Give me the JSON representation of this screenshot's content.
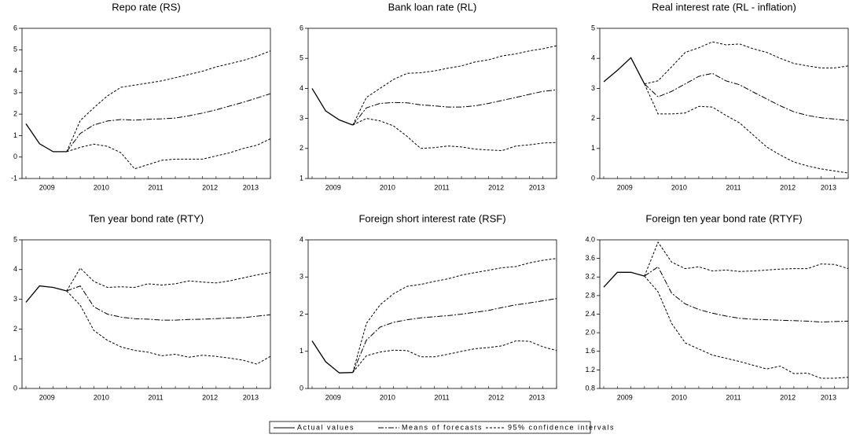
{
  "legend": [
    "Actual values",
    "Means of forecasts",
    "95% confidence intervals"
  ],
  "chart_data": [
    {
      "type": "line",
      "title": "Repo rate (RS)",
      "color": "#000000",
      "categories": [
        null,
        null,
        "2009",
        null,
        null,
        null,
        "2010",
        null,
        null,
        null,
        "2011",
        null,
        null,
        null,
        "2012",
        null,
        null,
        "2013",
        null
      ],
      "ylim": [
        -1,
        6
      ],
      "yticks": [
        -1,
        0,
        1,
        2,
        3,
        4,
        5,
        6
      ],
      "actual": [
        1.55,
        0.62,
        0.25,
        0.25,
        null,
        null,
        null,
        null,
        null,
        null,
        null,
        null,
        null,
        null,
        null,
        null,
        null,
        null,
        null
      ],
      "mean": [
        null,
        null,
        null,
        0.25,
        1.1,
        1.5,
        1.68,
        1.75,
        1.72,
        1.76,
        1.78,
        1.82,
        1.92,
        2.05,
        2.2,
        2.38,
        2.55,
        2.75,
        2.95
      ],
      "upper": [
        null,
        null,
        null,
        0.25,
        1.7,
        2.3,
        2.85,
        3.25,
        3.35,
        3.45,
        3.55,
        3.7,
        3.85,
        4.0,
        4.2,
        4.35,
        4.5,
        4.7,
        4.95
      ],
      "lower": [
        null,
        null,
        null,
        0.25,
        0.45,
        0.6,
        0.5,
        0.2,
        -0.55,
        -0.35,
        -0.15,
        -0.1,
        -0.1,
        -0.1,
        0.05,
        0.2,
        0.4,
        0.55,
        0.85
      ]
    },
    {
      "type": "line",
      "title": "Bank loan rate (RL)",
      "color": "#000000",
      "categories": [
        null,
        null,
        "2009",
        null,
        null,
        null,
        "2010",
        null,
        null,
        null,
        "2011",
        null,
        null,
        null,
        "2012",
        null,
        null,
        "2013",
        null
      ],
      "ylim": [
        1,
        6
      ],
      "yticks": [
        1,
        2,
        3,
        4,
        5,
        6
      ],
      "actual": [
        4.0,
        3.25,
        2.95,
        2.78,
        null,
        null,
        null,
        null,
        null,
        null,
        null,
        null,
        null,
        null,
        null,
        null,
        null,
        null,
        null
      ],
      "mean": [
        null,
        null,
        null,
        2.78,
        3.35,
        3.5,
        3.53,
        3.52,
        3.45,
        3.42,
        3.38,
        3.38,
        3.42,
        3.5,
        3.6,
        3.7,
        3.8,
        3.9,
        3.95
      ],
      "upper": [
        null,
        null,
        null,
        2.78,
        3.7,
        4.0,
        4.3,
        4.5,
        4.52,
        4.58,
        4.67,
        4.75,
        4.88,
        4.95,
        5.08,
        5.15,
        5.25,
        5.32,
        5.42
      ],
      "lower": [
        null,
        null,
        null,
        2.78,
        3.0,
        2.92,
        2.75,
        2.4,
        2.0,
        2.03,
        2.08,
        2.05,
        1.98,
        1.95,
        1.93,
        2.08,
        2.12,
        2.18,
        2.2
      ]
    },
    {
      "type": "line",
      "title": "Real interest rate (RL - inflation)",
      "color": "#000000",
      "categories": [
        null,
        null,
        "2009",
        null,
        null,
        null,
        "2010",
        null,
        null,
        null,
        "2011",
        null,
        null,
        null,
        "2012",
        null,
        null,
        "2013",
        null
      ],
      "ylim": [
        0,
        5
      ],
      "yticks": [
        0,
        1,
        2,
        3,
        4,
        5
      ],
      "actual": [
        3.22,
        3.6,
        4.02,
        3.15,
        null,
        null,
        null,
        null,
        null,
        null,
        null,
        null,
        null,
        null,
        null,
        null,
        null,
        null,
        null
      ],
      "mean": [
        null,
        null,
        null,
        3.15,
        2.72,
        2.9,
        3.15,
        3.4,
        3.5,
        3.25,
        3.12,
        2.88,
        2.65,
        2.42,
        2.22,
        2.1,
        2.02,
        1.98,
        1.93
      ],
      "upper": [
        null,
        null,
        null,
        3.15,
        3.25,
        3.72,
        4.2,
        4.35,
        4.55,
        4.45,
        4.48,
        4.32,
        4.2,
        4.0,
        3.83,
        3.75,
        3.68,
        3.68,
        3.75
      ],
      "lower": [
        null,
        null,
        null,
        3.15,
        2.15,
        2.15,
        2.18,
        2.4,
        2.38,
        2.1,
        1.85,
        1.45,
        1.05,
        0.78,
        0.55,
        0.42,
        0.32,
        0.25,
        0.18
      ]
    },
    {
      "type": "line",
      "title": "Ten year bond rate (RTY)",
      "color": "#000000",
      "categories": [
        null,
        null,
        "2009",
        null,
        null,
        null,
        "2010",
        null,
        null,
        null,
        "2011",
        null,
        null,
        null,
        "2012",
        null,
        null,
        "2013",
        null
      ],
      "ylim": [
        0,
        5
      ],
      "yticks": [
        0,
        1,
        2,
        3,
        4,
        5
      ],
      "actual": [
        2.9,
        3.45,
        3.4,
        3.28,
        null,
        null,
        null,
        null,
        null,
        null,
        null,
        null,
        null,
        null,
        null,
        null,
        null,
        null,
        null
      ],
      "mean": [
        null,
        null,
        null,
        3.28,
        3.45,
        2.75,
        2.5,
        2.4,
        2.35,
        2.33,
        2.3,
        2.3,
        2.32,
        2.33,
        2.35,
        2.37,
        2.38,
        2.43,
        2.48
      ],
      "upper": [
        null,
        null,
        null,
        3.28,
        4.05,
        3.6,
        3.4,
        3.42,
        3.4,
        3.52,
        3.48,
        3.52,
        3.62,
        3.58,
        3.55,
        3.62,
        3.72,
        3.82,
        3.9
      ],
      "lower": [
        null,
        null,
        null,
        3.28,
        2.8,
        1.95,
        1.62,
        1.4,
        1.28,
        1.22,
        1.1,
        1.15,
        1.05,
        1.12,
        1.08,
        1.02,
        0.95,
        0.82,
        1.08
      ]
    },
    {
      "type": "line",
      "title": "Foreign short interest rate (RSF)",
      "color": "#000000",
      "categories": [
        null,
        null,
        "2009",
        null,
        null,
        null,
        "2010",
        null,
        null,
        null,
        "2011",
        null,
        null,
        null,
        "2012",
        null,
        null,
        "2013",
        null
      ],
      "ylim": [
        0,
        4
      ],
      "yticks": [
        0,
        1,
        2,
        3,
        4
      ],
      "actual": [
        1.28,
        0.72,
        0.42,
        0.43,
        null,
        null,
        null,
        null,
        null,
        null,
        null,
        null,
        null,
        null,
        null,
        null,
        null,
        null,
        null
      ],
      "mean": [
        null,
        null,
        null,
        0.43,
        1.3,
        1.65,
        1.78,
        1.85,
        1.9,
        1.93,
        1.96,
        2.0,
        2.05,
        2.1,
        2.18,
        2.25,
        2.3,
        2.36,
        2.42
      ],
      "upper": [
        null,
        null,
        null,
        0.43,
        1.75,
        2.25,
        2.55,
        2.75,
        2.8,
        2.88,
        2.95,
        3.05,
        3.12,
        3.18,
        3.25,
        3.28,
        3.38,
        3.45,
        3.5
      ],
      "lower": [
        null,
        null,
        null,
        0.43,
        0.88,
        0.98,
        1.03,
        1.02,
        0.85,
        0.85,
        0.92,
        1.0,
        1.07,
        1.1,
        1.15,
        1.28,
        1.27,
        1.12,
        1.02
      ]
    },
    {
      "type": "line",
      "title": "Foreign ten year bond rate (RTYF)",
      "color": "#000000",
      "categories": [
        null,
        null,
        "2009",
        null,
        null,
        null,
        "2010",
        null,
        null,
        null,
        "2011",
        null,
        null,
        null,
        "2012",
        null,
        null,
        "2013",
        null
      ],
      "ylim": [
        0.8,
        4
      ],
      "yticks": [
        0.8,
        1.2,
        1.6,
        {
          "value": 2,
          "label": "2.0"
        },
        2.4,
        2.8,
        3.2,
        3.6,
        {
          "value": 4,
          "label": "4.0"
        }
      ],
      "actual": [
        2.98,
        3.3,
        3.3,
        3.22,
        null,
        null,
        null,
        null,
        null,
        null,
        null,
        null,
        null,
        null,
        null,
        null,
        null,
        null,
        null
      ],
      "mean": [
        null,
        null,
        null,
        3.22,
        3.42,
        2.85,
        2.62,
        2.5,
        2.42,
        2.36,
        2.31,
        2.29,
        2.28,
        2.27,
        2.26,
        2.25,
        2.23,
        2.24,
        2.25
      ],
      "upper": [
        null,
        null,
        null,
        3.22,
        3.95,
        3.52,
        3.38,
        3.42,
        3.33,
        3.35,
        3.32,
        3.33,
        3.35,
        3.37,
        3.38,
        3.38,
        3.48,
        3.47,
        3.38
      ],
      "lower": [
        null,
        null,
        null,
        3.22,
        2.88,
        2.2,
        1.78,
        1.65,
        1.52,
        1.45,
        1.38,
        1.3,
        1.22,
        1.28,
        1.12,
        1.13,
        1.02,
        1.02,
        1.04
      ]
    }
  ]
}
